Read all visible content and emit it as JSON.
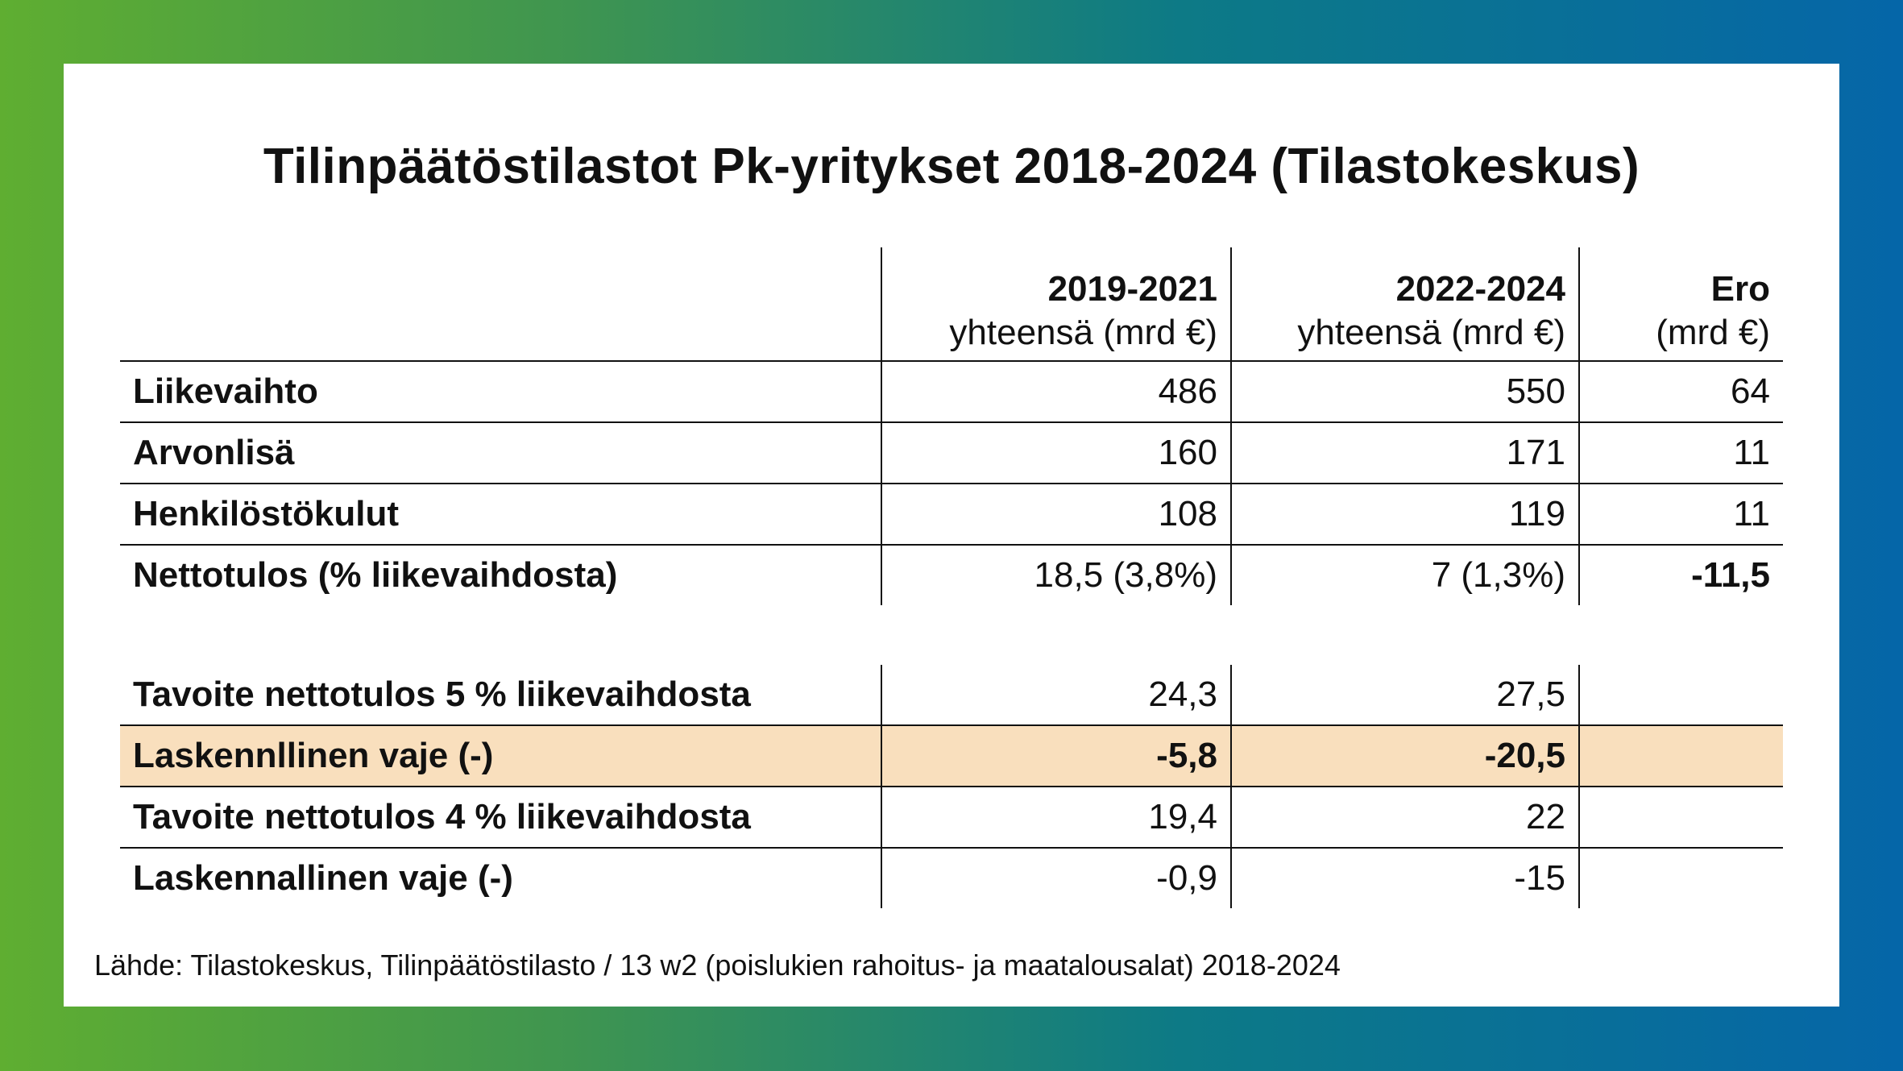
{
  "title": "Tilinpäätöstilastot Pk-yritykset 2018-2024 (Tilastokeskus)",
  "columns": [
    {
      "year": "2019-2021",
      "unit": "yhteensä (mrd €)"
    },
    {
      "year": "2022-2024",
      "unit": "yhteensä (mrd €)"
    },
    {
      "year": "Ero",
      "unit": "(mrd €)"
    }
  ],
  "rows_top": [
    {
      "label": "Liikevaihto",
      "v1": "486",
      "v2": "550",
      "v3": "64"
    },
    {
      "label": "Arvonlisä",
      "v1": "160",
      "v2": "171",
      "v3": "11"
    },
    {
      "label": "Henkilöstökulut",
      "v1": "108",
      "v2": "119",
      "v3": "11"
    },
    {
      "label": "Nettotulos (% liikevaihdosta)",
      "v1": "18,5 (3,8%)",
      "v2": "7 (1,3%)",
      "v3": "-11,5"
    }
  ],
  "rows_bottom": [
    {
      "label": "Tavoite nettotulos 5 % liikevaihdosta",
      "v1": "24,3",
      "v2": "27,5",
      "v3": ""
    },
    {
      "label": "Laskennllinen vaje (-)",
      "v1": "-5,8",
      "v2": "-20,5",
      "v3": ""
    },
    {
      "label": "Tavoite nettotulos 4 % liikevaihdosta",
      "v1": "19,4",
      "v2": "22",
      "v3": ""
    },
    {
      "label": "Laskennallinen vaje (-)",
      "v1": "-0,9",
      "v2": "-15",
      "v3": ""
    }
  ],
  "highlight_color": "#f9dfbd",
  "source": "Lähde: Tilastokeskus, Tilinpäätöstilasto / 13 w2 (poislukien rahoitus- ja maatalousalat) 2018-2024"
}
